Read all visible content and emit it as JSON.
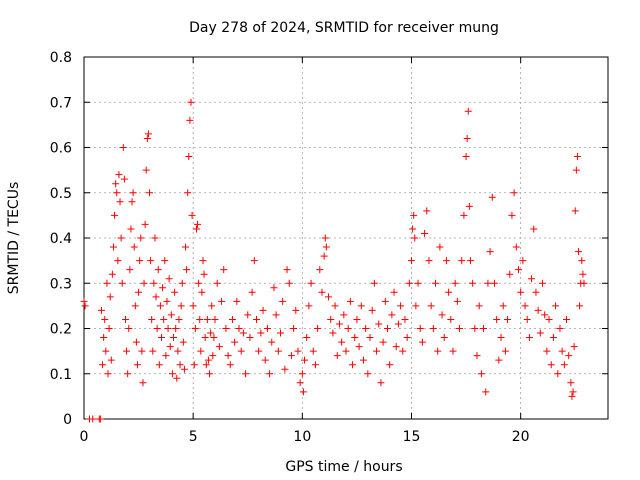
{
  "chart_data": {
    "type": "scatter",
    "title": "Day 278 of 2024, SRMTID for receiver mung",
    "xlabel": "GPS time / hours",
    "ylabel": "SRMTID / TECUs",
    "xlim": [
      0,
      24
    ],
    "ylim": [
      0,
      0.8
    ],
    "x_ticks": [
      0,
      5,
      10,
      15,
      20
    ],
    "x_tick_labels": [
      "0",
      "5",
      "10",
      "15",
      "20"
    ],
    "y_ticks": [
      0,
      0.1,
      0.2,
      0.3,
      0.4,
      0.5,
      0.6,
      0.7,
      0.8
    ],
    "y_tick_labels": [
      "0",
      "0.1",
      "0.2",
      "0.3",
      "0.4",
      "0.5",
      "0.6",
      "0.7",
      "0.8"
    ],
    "grid": true,
    "marker": "+",
    "color": "#ff0000",
    "series": [
      {
        "name": "SRMTID",
        "points": [
          [
            0.0,
            0.26
          ],
          [
            0.05,
            0.25
          ],
          [
            0.25,
            0.0
          ],
          [
            0.4,
            0.0
          ],
          [
            0.7,
            0.0
          ],
          [
            0.75,
            0.0
          ],
          [
            0.8,
            0.24
          ],
          [
            0.85,
            0.12
          ],
          [
            0.9,
            0.18
          ],
          [
            0.95,
            0.22
          ],
          [
            1.0,
            0.15
          ],
          [
            1.05,
            0.3
          ],
          [
            1.1,
            0.1
          ],
          [
            1.15,
            0.2
          ],
          [
            1.2,
            0.27
          ],
          [
            1.25,
            0.13
          ],
          [
            1.3,
            0.32
          ],
          [
            1.35,
            0.38
          ],
          [
            1.4,
            0.45
          ],
          [
            1.45,
            0.52
          ],
          [
            1.5,
            0.5
          ],
          [
            1.55,
            0.35
          ],
          [
            1.6,
            0.54
          ],
          [
            1.65,
            0.48
          ],
          [
            1.7,
            0.4
          ],
          [
            1.75,
            0.3
          ],
          [
            1.8,
            0.6
          ],
          [
            1.85,
            0.53
          ],
          [
            1.9,
            0.22
          ],
          [
            1.95,
            0.15
          ],
          [
            2.0,
            0.1
          ],
          [
            2.05,
            0.2
          ],
          [
            2.1,
            0.33
          ],
          [
            2.15,
            0.42
          ],
          [
            2.2,
            0.48
          ],
          [
            2.25,
            0.5
          ],
          [
            2.3,
            0.38
          ],
          [
            2.35,
            0.25
          ],
          [
            2.4,
            0.17
          ],
          [
            2.45,
            0.12
          ],
          [
            2.5,
            0.28
          ],
          [
            2.55,
            0.35
          ],
          [
            2.6,
            0.4
          ],
          [
            2.65,
            0.15
          ],
          [
            2.7,
            0.08
          ],
          [
            2.75,
            0.3
          ],
          [
            2.8,
            0.43
          ],
          [
            2.85,
            0.55
          ],
          [
            2.9,
            0.62
          ],
          [
            2.95,
            0.63
          ],
          [
            3.0,
            0.5
          ],
          [
            3.05,
            0.35
          ],
          [
            3.1,
            0.22
          ],
          [
            3.15,
            0.15
          ],
          [
            3.2,
            0.3
          ],
          [
            3.25,
            0.4
          ],
          [
            3.3,
            0.27
          ],
          [
            3.35,
            0.2
          ],
          [
            3.4,
            0.33
          ],
          [
            3.45,
            0.12
          ],
          [
            3.5,
            0.25
          ],
          [
            3.55,
            0.18
          ],
          [
            3.6,
            0.29
          ],
          [
            3.65,
            0.22
          ],
          [
            3.7,
            0.35
          ],
          [
            3.75,
            0.14
          ],
          [
            3.8,
            0.26
          ],
          [
            3.85,
            0.2
          ],
          [
            3.9,
            0.31
          ],
          [
            3.95,
            0.16
          ],
          [
            4.0,
            0.23
          ],
          [
            4.05,
            0.1
          ],
          [
            4.1,
            0.18
          ],
          [
            4.15,
            0.28
          ],
          [
            4.2,
            0.2
          ],
          [
            4.25,
            0.09
          ],
          [
            4.3,
            0.15
          ],
          [
            4.35,
            0.22
          ],
          [
            4.4,
            0.12
          ],
          [
            4.45,
            0.25
          ],
          [
            4.5,
            0.3
          ],
          [
            4.55,
            0.17
          ],
          [
            4.6,
            0.11
          ],
          [
            4.65,
            0.38
          ],
          [
            4.7,
            0.33
          ],
          [
            4.75,
            0.5
          ],
          [
            4.8,
            0.58
          ],
          [
            4.85,
            0.66
          ],
          [
            4.9,
            0.7
          ],
          [
            4.95,
            0.45
          ],
          [
            5.0,
            0.25
          ],
          [
            5.05,
            0.12
          ],
          [
            5.1,
            0.2
          ],
          [
            5.15,
            0.42
          ],
          [
            5.2,
            0.43
          ],
          [
            5.25,
            0.3
          ],
          [
            5.3,
            0.22
          ],
          [
            5.35,
            0.15
          ],
          [
            5.4,
            0.28
          ],
          [
            5.45,
            0.35
          ],
          [
            5.5,
            0.32
          ],
          [
            5.55,
            0.18
          ],
          [
            5.6,
            0.12
          ],
          [
            5.65,
            0.22
          ],
          [
            5.7,
            0.13
          ],
          [
            5.75,
            0.1
          ],
          [
            5.8,
            0.19
          ],
          [
            5.85,
            0.25
          ],
          [
            5.9,
            0.14
          ],
          [
            5.95,
            0.18
          ],
          [
            6.0,
            0.22
          ],
          [
            6.1,
            0.3
          ],
          [
            6.2,
            0.16
          ],
          [
            6.3,
            0.26
          ],
          [
            6.4,
            0.33
          ],
          [
            6.5,
            0.2
          ],
          [
            6.6,
            0.14
          ],
          [
            6.7,
            0.12
          ],
          [
            6.8,
            0.22
          ],
          [
            6.9,
            0.17
          ],
          [
            7.0,
            0.26
          ],
          [
            7.1,
            0.2
          ],
          [
            7.2,
            0.15
          ],
          [
            7.3,
            0.19
          ],
          [
            7.4,
            0.1
          ],
          [
            7.5,
            0.23
          ],
          [
            7.6,
            0.18
          ],
          [
            7.7,
            0.28
          ],
          [
            7.8,
            0.35
          ],
          [
            7.9,
            0.22
          ],
          [
            8.0,
            0.15
          ],
          [
            8.1,
            0.19
          ],
          [
            8.2,
            0.24
          ],
          [
            8.3,
            0.13
          ],
          [
            8.4,
            0.2
          ],
          [
            8.5,
            0.1
          ],
          [
            8.6,
            0.17
          ],
          [
            8.7,
            0.29
          ],
          [
            8.8,
            0.23
          ],
          [
            8.9,
            0.15
          ],
          [
            9.0,
            0.19
          ],
          [
            9.1,
            0.26
          ],
          [
            9.2,
            0.11
          ],
          [
            9.3,
            0.33
          ],
          [
            9.4,
            0.3
          ],
          [
            9.5,
            0.14
          ],
          [
            9.6,
            0.2
          ],
          [
            9.7,
            0.24
          ],
          [
            9.8,
            0.15
          ],
          [
            9.9,
            0.08
          ],
          [
            10.0,
            0.1
          ],
          [
            10.05,
            0.06
          ],
          [
            10.1,
            0.13
          ],
          [
            10.2,
            0.18
          ],
          [
            10.3,
            0.25
          ],
          [
            10.4,
            0.3
          ],
          [
            10.5,
            0.15
          ],
          [
            10.6,
            0.12
          ],
          [
            10.7,
            0.2
          ],
          [
            10.8,
            0.33
          ],
          [
            10.9,
            0.28
          ],
          [
            11.0,
            0.36
          ],
          [
            11.05,
            0.4
          ],
          [
            11.1,
            0.38
          ],
          [
            11.2,
            0.27
          ],
          [
            11.3,
            0.22
          ],
          [
            11.4,
            0.19
          ],
          [
            11.5,
            0.25
          ],
          [
            11.6,
            0.14
          ],
          [
            11.7,
            0.21
          ],
          [
            11.8,
            0.17
          ],
          [
            11.9,
            0.23
          ],
          [
            12.0,
            0.15
          ],
          [
            12.1,
            0.2
          ],
          [
            12.2,
            0.26
          ],
          [
            12.3,
            0.12
          ],
          [
            12.4,
            0.18
          ],
          [
            12.5,
            0.22
          ],
          [
            12.6,
            0.16
          ],
          [
            12.7,
            0.25
          ],
          [
            12.8,
            0.13
          ],
          [
            12.9,
            0.2
          ],
          [
            13.0,
            0.1
          ],
          [
            13.1,
            0.18
          ],
          [
            13.2,
            0.24
          ],
          [
            13.3,
            0.3
          ],
          [
            13.4,
            0.15
          ],
          [
            13.5,
            0.21
          ],
          [
            13.6,
            0.08
          ],
          [
            13.7,
            0.17
          ],
          [
            13.8,
            0.26
          ],
          [
            13.9,
            0.2
          ],
          [
            14.0,
            0.12
          ],
          [
            14.1,
            0.23
          ],
          [
            14.2,
            0.28
          ],
          [
            14.3,
            0.16
          ],
          [
            14.4,
            0.21
          ],
          [
            14.5,
            0.25
          ],
          [
            14.6,
            0.15
          ],
          [
            14.7,
            0.22
          ],
          [
            14.8,
            0.18
          ],
          [
            14.9,
            0.3
          ],
          [
            15.0,
            0.35
          ],
          [
            15.05,
            0.42
          ],
          [
            15.1,
            0.45
          ],
          [
            15.15,
            0.4
          ],
          [
            15.2,
            0.25
          ],
          [
            15.3,
            0.3
          ],
          [
            15.4,
            0.2
          ],
          [
            15.5,
            0.17
          ],
          [
            15.6,
            0.41
          ],
          [
            15.7,
            0.46
          ],
          [
            15.8,
            0.35
          ],
          [
            15.9,
            0.25
          ],
          [
            16.0,
            0.2
          ],
          [
            16.1,
            0.3
          ],
          [
            16.2,
            0.15
          ],
          [
            16.3,
            0.38
          ],
          [
            16.4,
            0.23
          ],
          [
            16.5,
            0.18
          ],
          [
            16.6,
            0.35
          ],
          [
            16.7,
            0.28
          ],
          [
            16.8,
            0.22
          ],
          [
            16.9,
            0.15
          ],
          [
            17.0,
            0.3
          ],
          [
            17.1,
            0.26
          ],
          [
            17.2,
            0.2
          ],
          [
            17.3,
            0.35
          ],
          [
            17.4,
            0.45
          ],
          [
            17.5,
            0.58
          ],
          [
            17.55,
            0.62
          ],
          [
            17.6,
            0.68
          ],
          [
            17.65,
            0.47
          ],
          [
            17.7,
            0.35
          ],
          [
            17.8,
            0.3
          ],
          [
            17.9,
            0.2
          ],
          [
            18.0,
            0.14
          ],
          [
            18.1,
            0.25
          ],
          [
            18.2,
            0.1
          ],
          [
            18.3,
            0.2
          ],
          [
            18.4,
            0.06
          ],
          [
            18.5,
            0.3
          ],
          [
            18.6,
            0.37
          ],
          [
            18.7,
            0.49
          ],
          [
            18.8,
            0.3
          ],
          [
            18.9,
            0.22
          ],
          [
            19.0,
            0.13
          ],
          [
            19.1,
            0.18
          ],
          [
            19.2,
            0.25
          ],
          [
            19.3,
            0.15
          ],
          [
            19.4,
            0.22
          ],
          [
            19.5,
            0.32
          ],
          [
            19.6,
            0.45
          ],
          [
            19.7,
            0.5
          ],
          [
            19.8,
            0.38
          ],
          [
            19.9,
            0.33
          ],
          [
            20.0,
            0.28
          ],
          [
            20.1,
            0.35
          ],
          [
            20.2,
            0.25
          ],
          [
            20.3,
            0.22
          ],
          [
            20.4,
            0.18
          ],
          [
            20.5,
            0.31
          ],
          [
            20.6,
            0.42
          ],
          [
            20.7,
            0.28
          ],
          [
            20.8,
            0.24
          ],
          [
            20.9,
            0.19
          ],
          [
            21.0,
            0.3
          ],
          [
            21.1,
            0.23
          ],
          [
            21.2,
            0.15
          ],
          [
            21.3,
            0.22
          ],
          [
            21.4,
            0.12
          ],
          [
            21.5,
            0.18
          ],
          [
            21.6,
            0.25
          ],
          [
            21.7,
            0.1
          ],
          [
            21.8,
            0.2
          ],
          [
            21.9,
            0.15
          ],
          [
            22.0,
            0.12
          ],
          [
            22.1,
            0.22
          ],
          [
            22.2,
            0.14
          ],
          [
            22.3,
            0.08
          ],
          [
            22.35,
            0.05
          ],
          [
            22.4,
            0.06
          ],
          [
            22.45,
            0.16
          ],
          [
            22.5,
            0.46
          ],
          [
            22.55,
            0.55
          ],
          [
            22.6,
            0.58
          ],
          [
            22.65,
            0.37
          ],
          [
            22.7,
            0.25
          ],
          [
            22.75,
            0.3
          ],
          [
            22.8,
            0.35
          ],
          [
            22.85,
            0.32
          ],
          [
            22.9,
            0.3
          ]
        ]
      }
    ]
  }
}
